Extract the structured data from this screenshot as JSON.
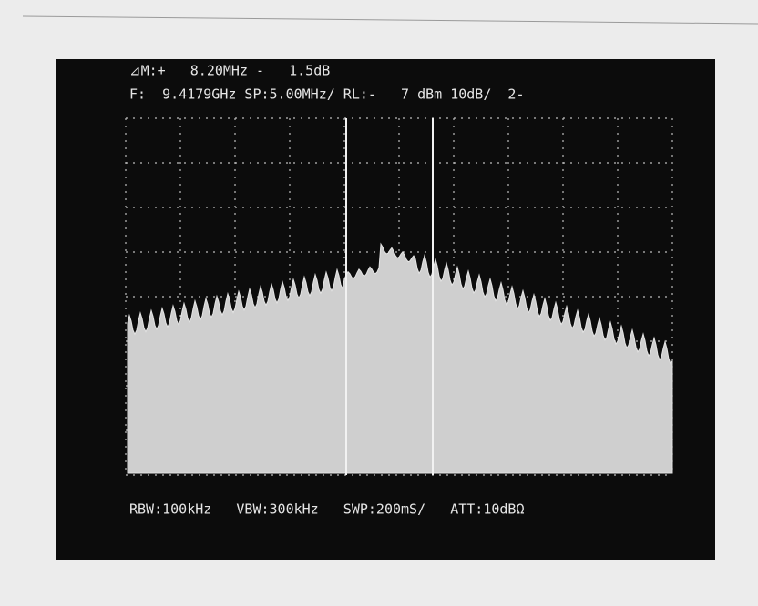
{
  "screen": {
    "marker_line": "⊿M:+   8.20MHz -   1.5dB",
    "settings_line": "F:  9.4179GHz SP:5.00MHz/ RL:-   7 dBm 10dB/  2-",
    "bottom_line": "RBW:100kHz   VBW:300kHz   SWP:200mS/   ATT:10dBΩ"
  }
}
